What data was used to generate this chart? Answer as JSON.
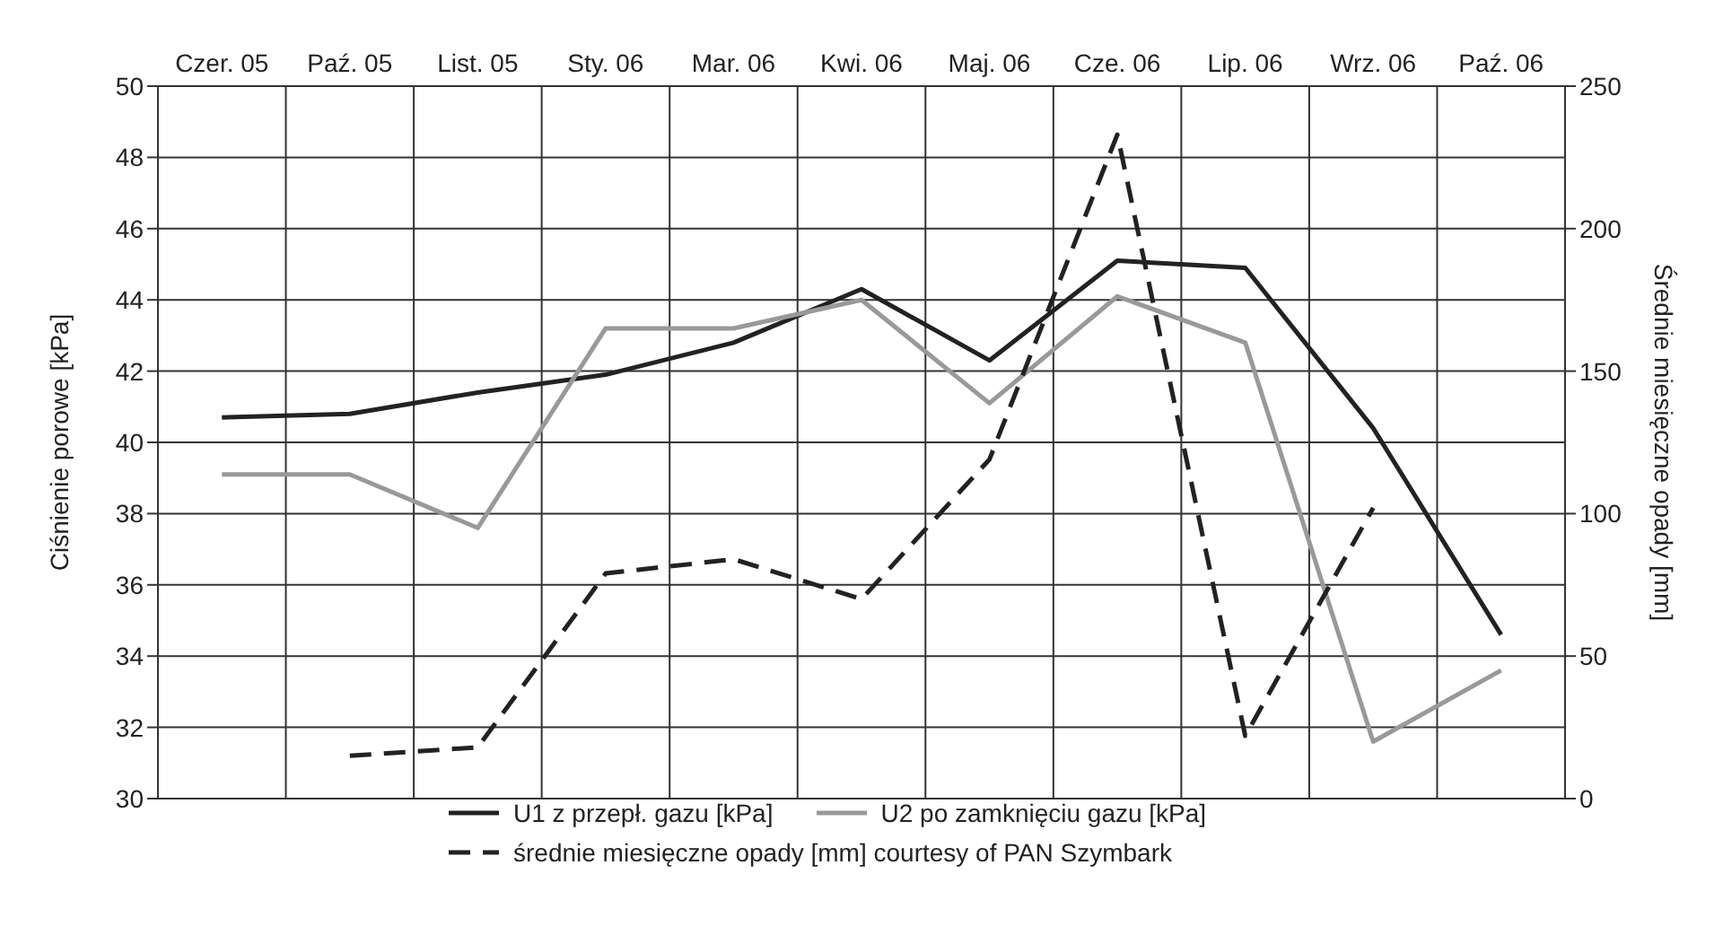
{
  "chart_data": {
    "type": "line",
    "ylabel": "Ciśnienie porowe [kPa]",
    "y2label": "Średnie miesięczne opady [mm]",
    "categories": [
      "Czer. 05",
      "Paź. 05",
      "List. 05",
      "Sty. 06",
      "Mar. 06",
      "Kwi. 06",
      "Maj. 06",
      "Cze. 06",
      "Lip. 06",
      "Wrz. 06",
      "Paź. 06"
    ],
    "ylim": [
      30,
      50
    ],
    "yticks": [
      30,
      32,
      34,
      36,
      38,
      40,
      42,
      44,
      46,
      48,
      50
    ],
    "y2lim": [
      0,
      250
    ],
    "y2ticks": [
      0,
      50,
      100,
      150,
      200,
      250
    ],
    "grid": true,
    "legend": "bottom",
    "marker": "none",
    "series": [
      {
        "name": "U1 z przepł. gazu [kPa]",
        "color": "#222222",
        "line_style": "solid",
        "values": [
          40.7,
          40.8,
          41.4,
          41.9,
          42.8,
          44.3,
          42.3,
          45.1,
          44.9,
          40.4,
          34.6
        ]
      },
      {
        "name": "U2 po zamknięciu gazu [kPa]",
        "color": "#999999",
        "line_style": "solid",
        "values": [
          39.1,
          39.1,
          37.6,
          43.2,
          43.2,
          44.0,
          41.1,
          44.1,
          42.8,
          31.6,
          33.6
        ]
      },
      {
        "name": "średnie miesięczne opady [mm] courtesy of PAN Szymbark",
        "color": "#222222",
        "line_style": "dashed",
        "axis": "y2",
        "values": [
          null,
          15,
          18,
          79,
          84,
          70,
          119,
          233,
          22,
          102,
          null
        ]
      }
    ]
  }
}
